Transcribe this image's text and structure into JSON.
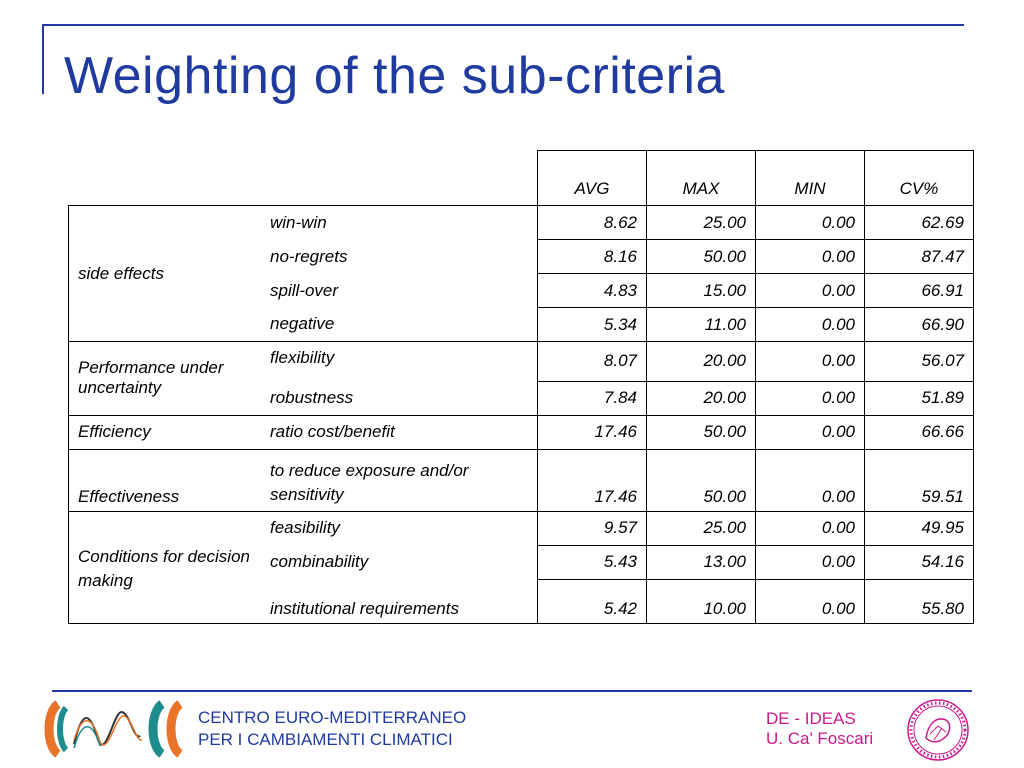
{
  "slide": {
    "title": "Weighting of the sub-criteria"
  },
  "table": {
    "headers": [
      "AVG",
      "MAX",
      "MIN",
      "CV%"
    ],
    "groups": [
      {
        "label": "side effects",
        "rows": [
          {
            "sub": "win-win",
            "values": [
              "8.62",
              "25.00",
              "0.00",
              "62.69"
            ]
          },
          {
            "sub": "no-regrets",
            "values": [
              "8.16",
              "50.00",
              "0.00",
              "87.47"
            ]
          },
          {
            "sub": "spill-over",
            "values": [
              "4.83",
              "15.00",
              "0.00",
              "66.91"
            ]
          },
          {
            "sub": "negative",
            "values": [
              "5.34",
              "11.00",
              "0.00",
              "66.90"
            ]
          }
        ]
      },
      {
        "label": "Performance under uncertainty",
        "rows": [
          {
            "sub": "flexibility",
            "values": [
              "8.07",
              "20.00",
              "0.00",
              "56.07"
            ]
          },
          {
            "sub": "robustness",
            "values": [
              "7.84",
              "20.00",
              "0.00",
              "51.89"
            ]
          }
        ]
      },
      {
        "label": "Efficiency",
        "rows": [
          {
            "sub": "ratio cost/benefit",
            "values": [
              "17.46",
              "50.00",
              "0.00",
              "66.66"
            ]
          }
        ]
      },
      {
        "label": "Effectiveness",
        "rows": [
          {
            "sub": "to reduce exposure and/or sensitivity",
            "values": [
              "17.46",
              "50.00",
              "0.00",
              "59.51"
            ]
          }
        ]
      },
      {
        "label": "Conditions for decision making",
        "rows": [
          {
            "sub": "feasibility",
            "values": [
              "9.57",
              "25.00",
              "0.00",
              "49.95"
            ]
          },
          {
            "sub": "combinability",
            "values": [
              "5.43",
              "13.00",
              "0.00",
              "54.16"
            ]
          },
          {
            "sub": "institutional requirements",
            "values": [
              "5.42",
              "10.00",
              "0.00",
              "55.80"
            ]
          }
        ]
      }
    ]
  },
  "footer": {
    "org_line1": "CENTRO EURO-MEDITERRANEO",
    "org_line2": "PER I CAMBIAMENTI CLIMATICI",
    "right_line1": "DE - IDEAS",
    "right_line2": "U. Ca' Foscari",
    "colors": {
      "blue": "#1f3ba0",
      "magenta": "#cc1a8c",
      "orange": "#e8742a",
      "teal": "#1e8c8c"
    }
  }
}
